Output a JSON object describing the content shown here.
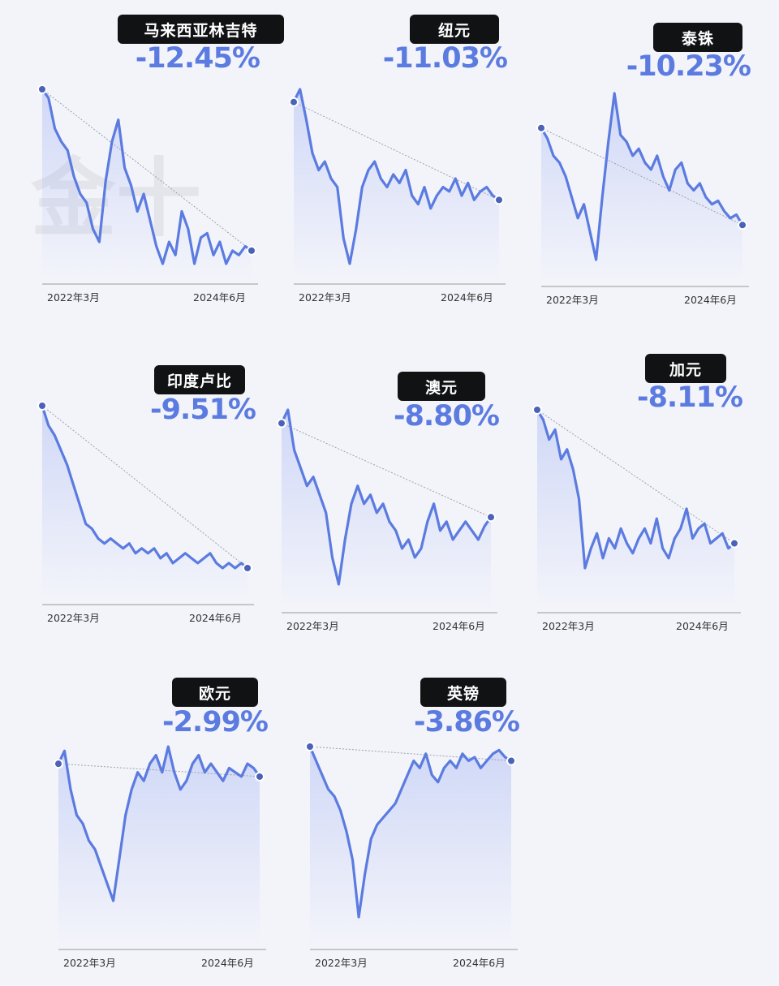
{
  "colors": {
    "line": "#5b7be0",
    "dot": "#4a62b8",
    "trend": "#9aa0ae",
    "label_bg": "#111214",
    "background": "#f3f4fa"
  },
  "watermark": {
    "text": "金十"
  },
  "chart_data": [
    {
      "type": "line",
      "currency": "马来西亚林吉特",
      "change": "-12.45%",
      "x_start": "2022年3月",
      "x_end": "2024年6月",
      "values": [
        0,
        -2,
        -9,
        -12,
        -14,
        -20,
        -24,
        -26,
        -32,
        -35,
        -21,
        -12,
        -7,
        -18,
        -22,
        -28,
        -24,
        -30,
        -36,
        -40,
        -35,
        -38,
        -28,
        -32,
        -40,
        -34,
        -33,
        -38,
        -35,
        -40,
        -37,
        -38,
        -36,
        -37
      ]
    },
    {
      "type": "line",
      "currency": "纽元",
      "change": "-11.03%",
      "x_start": "2022年3月",
      "x_end": "2024年6月",
      "values": [
        0,
        3,
        -4,
        -12,
        -16,
        -14,
        -18,
        -20,
        -32,
        -38,
        -30,
        -20,
        -16,
        -14,
        -18,
        -20,
        -17,
        -19,
        -16,
        -22,
        -24,
        -20,
        -25,
        -22,
        -20,
        -21,
        -18,
        -22,
        -19,
        -23,
        -21,
        -20,
        -22,
        -23
      ]
    },
    {
      "type": "line",
      "currency": "泰铢",
      "change": "-10.23%",
      "x_start": "2022年3月",
      "x_end": "2024年6月",
      "values": [
        0,
        -3,
        -8,
        -10,
        -14,
        -20,
        -26,
        -22,
        -30,
        -38,
        -20,
        -4,
        10,
        -2,
        -4,
        -8,
        -6,
        -10,
        -12,
        -8,
        -14,
        -18,
        -12,
        -10,
        -16,
        -18,
        -16,
        -20,
        -22,
        -21,
        -24,
        -26,
        -25,
        -28
      ]
    },
    {
      "type": "line",
      "currency": "印度卢比",
      "change": "-9.51%",
      "x_start": "2022年3月",
      "x_end": "2024年6月",
      "values": [
        0,
        -4,
        -6,
        -9,
        -12,
        -16,
        -20,
        -24,
        -25,
        -27,
        -28,
        -27,
        -28,
        -29,
        -28,
        -30,
        -29,
        -30,
        -29,
        -31,
        -30,
        -32,
        -31,
        -30,
        -31,
        -32,
        -31,
        -30,
        -32,
        -33,
        -32,
        -33,
        -32,
        -33
      ]
    },
    {
      "type": "line",
      "currency": "澳元",
      "change": "-8.80%",
      "x_start": "2022年3月",
      "x_end": "2024年6月",
      "values": [
        0,
        3,
        -6,
        -10,
        -14,
        -12,
        -16,
        -20,
        -30,
        -36,
        -26,
        -18,
        -14,
        -18,
        -16,
        -20,
        -18,
        -22,
        -24,
        -28,
        -26,
        -30,
        -28,
        -22,
        -18,
        -24,
        -22,
        -26,
        -24,
        -22,
        -24,
        -26,
        -23,
        -21
      ]
    },
    {
      "type": "line",
      "currency": "加元",
      "change": "-8.11%",
      "x_start": "2022年3月",
      "x_end": "2024年6月",
      "values": [
        0,
        -2,
        -6,
        -4,
        -10,
        -8,
        -12,
        -18,
        -32,
        -28,
        -25,
        -30,
        -26,
        -28,
        -24,
        -27,
        -29,
        -26,
        -24,
        -27,
        -22,
        -28,
        -30,
        -26,
        -24,
        -20,
        -26,
        -24,
        -23,
        -27,
        -26,
        -25,
        -28,
        -27
      ]
    },
    {
      "type": "line",
      "currency": "欧元",
      "change": "-2.99%",
      "x_start": "2022年3月",
      "x_end": "2024年6月",
      "values": [
        0,
        3,
        -6,
        -12,
        -14,
        -18,
        -20,
        -24,
        -28,
        -32,
        -22,
        -12,
        -6,
        -2,
        -4,
        0,
        2,
        -2,
        4,
        -2,
        -6,
        -4,
        0,
        2,
        -2,
        0,
        -2,
        -4,
        -1,
        -2,
        -3,
        0,
        -1,
        -3
      ]
    },
    {
      "type": "line",
      "currency": "英镑",
      "change": "-3.86%",
      "x_start": "2022年3月",
      "x_end": "2024年6月",
      "values": [
        0,
        -4,
        -8,
        -12,
        -14,
        -18,
        -24,
        -32,
        -48,
        -36,
        -26,
        -22,
        -20,
        -18,
        -16,
        -12,
        -8,
        -4,
        -6,
        -2,
        -8,
        -10,
        -6,
        -4,
        -6,
        -2,
        -4,
        -3,
        -6,
        -4,
        -2,
        -1,
        -3,
        -4
      ]
    }
  ]
}
